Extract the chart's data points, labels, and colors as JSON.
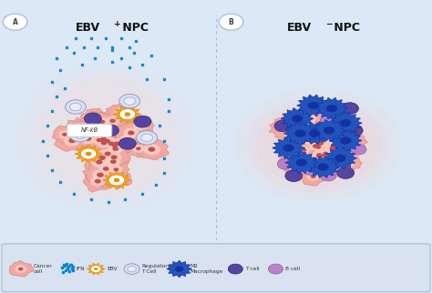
{
  "bg_color": "#dce8f5",
  "panel_bg": "#dce8f5",
  "title_a_text": "EBV",
  "title_a_super": "+",
  "title_a_npc": " NPC",
  "title_b_text": "EBV",
  "title_b_super": "⁻",
  "title_b_npc": " NPC",
  "label_a": "A",
  "label_b": "B",
  "nfkb_label": "NF-kB",
  "cancer_fill": "#f0a8a0",
  "cancer_edge": "#d87070",
  "cancer_inner": "#c86060",
  "cancer_fill2": "#f5c0b8",
  "ebv_fill": "#f5a820",
  "ebv_edge": "#e09010",
  "reg_t_fill": "#d8e0f0",
  "reg_t_edge": "#9090c0",
  "reg_t_inner": "#b8c8e8",
  "m2_fill": "#2255bb",
  "m2_edge": "#1030880",
  "t_fill": "#5545a0",
  "t_edge": "#352880",
  "b_fill": "#b880cc",
  "b_edge": "#906090",
  "ifn_color": "#0088cc",
  "glow_a": "#f5d8d8",
  "glow_b": "#f8d8d8",
  "legend_bg": "#d8e2f0"
}
